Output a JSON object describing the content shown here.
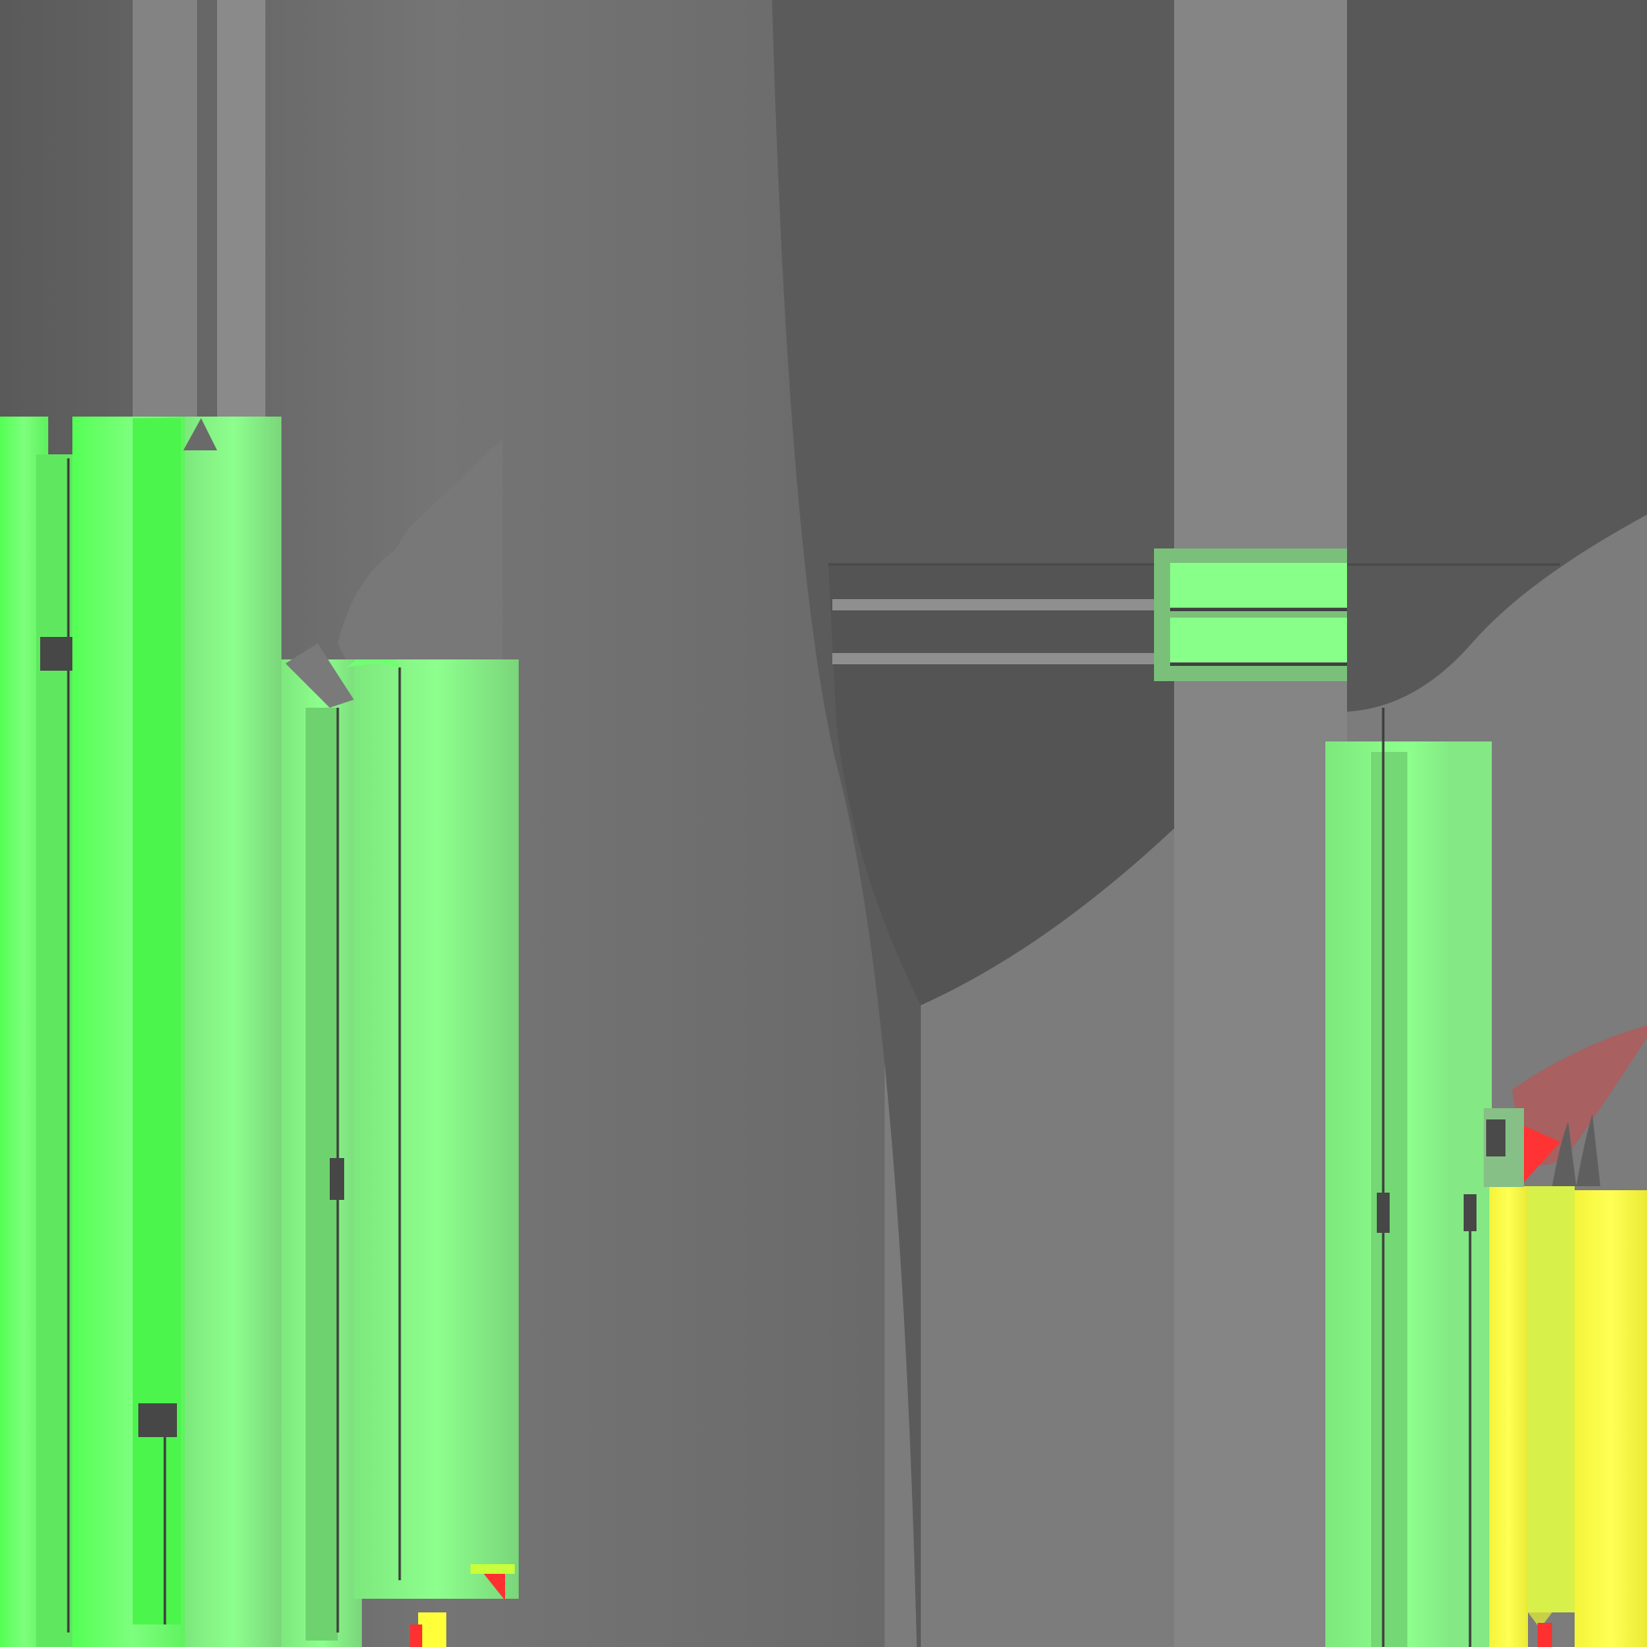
{
  "texture": {
    "kind": "3d-render-texture",
    "palette": {
      "background_gray": "#6e6e6e",
      "dark_gray": "#545454",
      "mid_gray": "#5c5c5c",
      "light_gray": "#858585",
      "bright_green": "#55ff55",
      "pale_green": "#88ff88",
      "yellow": "#ffff3a",
      "red": "#ff3030",
      "muted_red": "#b06060",
      "slot_dark": "#404040"
    },
    "regions": [
      {
        "name": "left-green-tubes",
        "color": "bright_green"
      },
      {
        "name": "center-gray-body",
        "color": "dark_gray"
      },
      {
        "name": "right-green-tubes",
        "color": "pale_green"
      },
      {
        "name": "right-yellow-tubes",
        "color": "yellow"
      },
      {
        "name": "red-fin",
        "color": "muted_red"
      }
    ]
  }
}
